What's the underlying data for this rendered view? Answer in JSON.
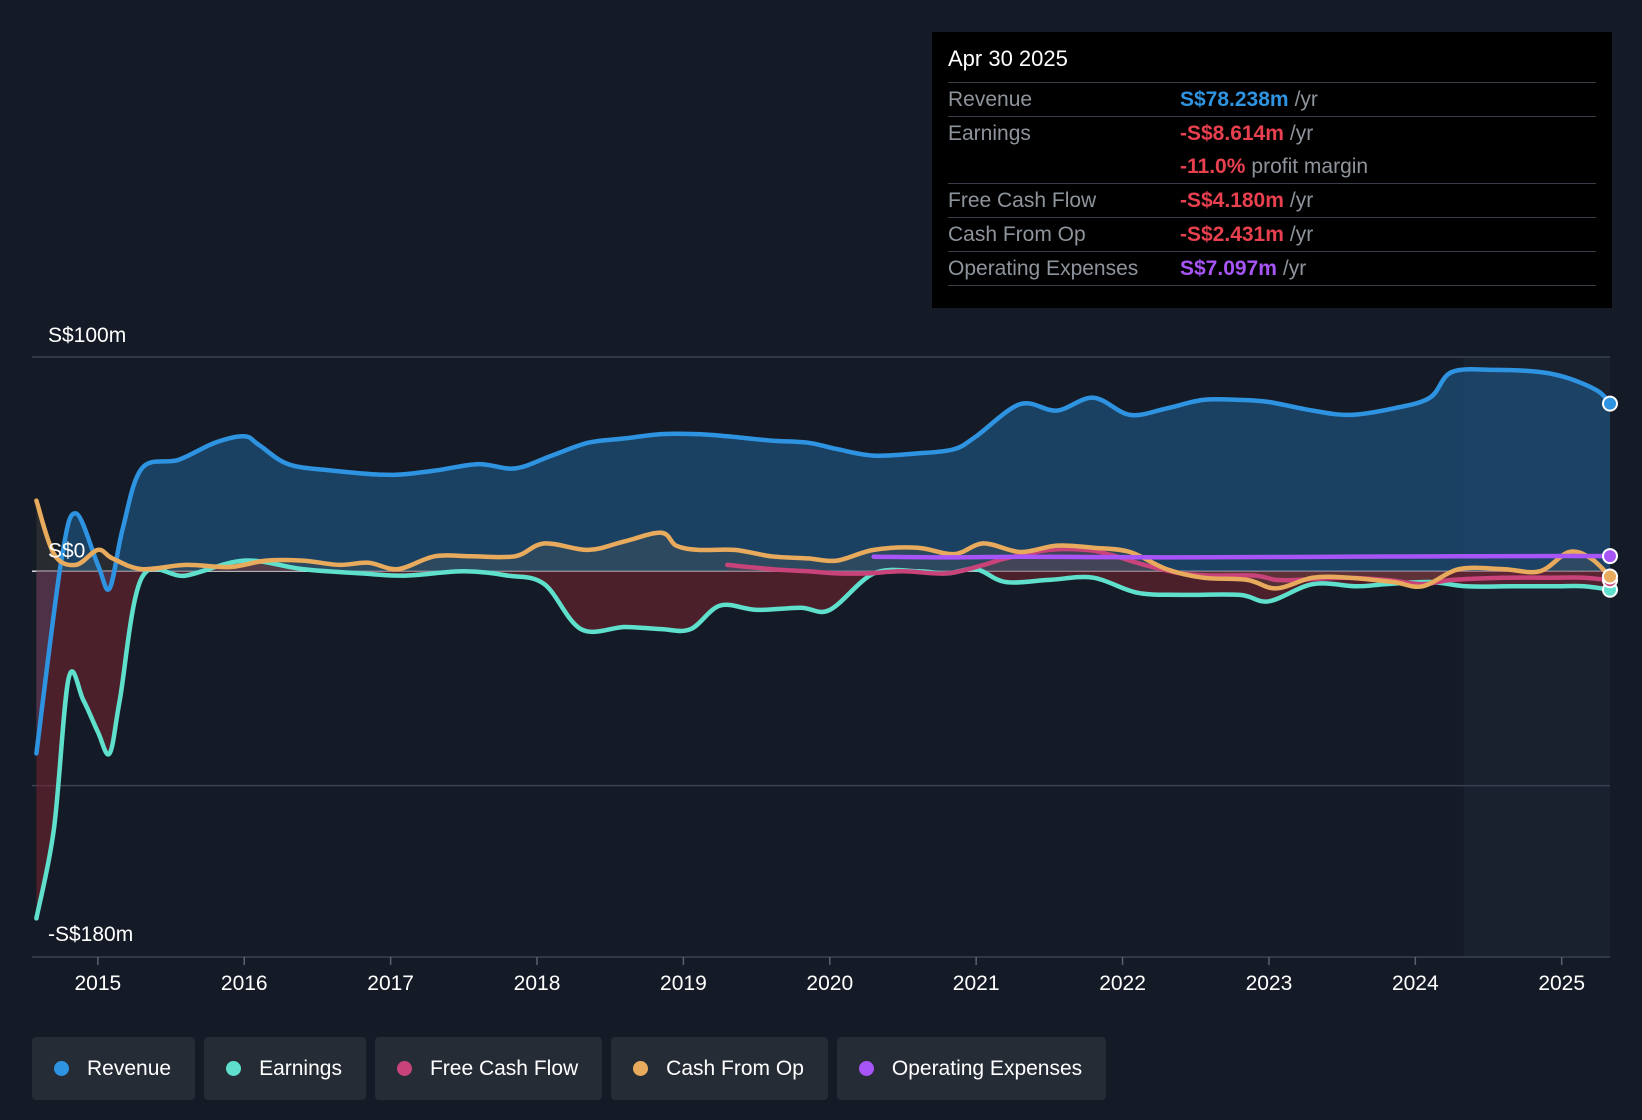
{
  "tooltip": {
    "date": "Apr 30 2025",
    "rows": [
      {
        "label": "Revenue",
        "value": "S$78.238m",
        "unit": "/yr",
        "color": "#2e93e0"
      },
      {
        "label": "Earnings",
        "value": "-S$8.614m",
        "unit": "/yr",
        "color": "#e8404f"
      },
      {
        "label": "",
        "value": "-11.0%",
        "unit": "profit margin",
        "color": "#e8404f"
      },
      {
        "label": "Free Cash Flow",
        "value": "-S$4.180m",
        "unit": "/yr",
        "color": "#e8404f"
      },
      {
        "label": "Cash From Op",
        "value": "-S$2.431m",
        "unit": "/yr",
        "color": "#e8404f"
      },
      {
        "label": "Operating Expenses",
        "value": "S$7.097m",
        "unit": "/yr",
        "color": "#a855f7"
      }
    ]
  },
  "legend": [
    {
      "label": "Revenue",
      "color": "#2e93e0"
    },
    {
      "label": "Earnings",
      "color": "#5fe0cc"
    },
    {
      "label": "Free Cash Flow",
      "color": "#c8437a"
    },
    {
      "label": "Cash From Op",
      "color": "#e8aa5c"
    },
    {
      "label": "Operating Expenses",
      "color": "#a855f7"
    }
  ],
  "chart_data": {
    "type": "line",
    "title": "",
    "xlabel": "",
    "ylabel": "",
    "y_axis_labels": [
      "S$100m",
      "S$0",
      "-S$180m"
    ],
    "ylim": [
      -180,
      100
    ],
    "xlim": [
      2014.55,
      2025.33
    ],
    "x_ticks": [
      "2015",
      "2016",
      "2017",
      "2018",
      "2019",
      "2020",
      "2021",
      "2022",
      "2023",
      "2024",
      "2025"
    ],
    "series": [
      {
        "name": "Revenue",
        "color": "#2e93e0",
        "x": [
          2014.58,
          2014.75,
          2014.85,
          2015.0,
          2015.08,
          2015.17,
          2015.3,
          2015.55,
          2015.8,
          2016.0,
          2016.1,
          2016.3,
          2016.6,
          2017.0,
          2017.3,
          2017.6,
          2017.85,
          2018.1,
          2018.35,
          2018.6,
          2018.85,
          2019.1,
          2019.3,
          2019.6,
          2019.85,
          2020.05,
          2020.3,
          2020.6,
          2020.85,
          2021.0,
          2021.3,
          2021.55,
          2021.8,
          2022.05,
          2022.3,
          2022.55,
          2022.8,
          2023.0,
          2023.3,
          2023.55,
          2023.85,
          2024.1,
          2024.25,
          2024.55,
          2024.85,
          2025.05,
          2025.25,
          2025.33
        ],
        "y": [
          -85,
          5,
          27,
          3,
          -8,
          20,
          48,
          52,
          60,
          63,
          59,
          50,
          47,
          45,
          47,
          50,
          48,
          54,
          60,
          62,
          64,
          64,
          63,
          61,
          60,
          57,
          54,
          55,
          57,
          63,
          78,
          75,
          81,
          73,
          76,
          80,
          80,
          79,
          75,
          73,
          76,
          81,
          93,
          94,
          93,
          90,
          84,
          78.238
        ]
      },
      {
        "name": "Earnings",
        "color": "#5fe0cc",
        "x": [
          2014.58,
          2014.7,
          2014.8,
          2014.9,
          2015.0,
          2015.08,
          2015.15,
          2015.3,
          2015.6,
          2016.0,
          2016.4,
          2016.8,
          2017.1,
          2017.5,
          2017.8,
          2018.05,
          2018.3,
          2018.6,
          2018.85,
          2019.05,
          2019.25,
          2019.5,
          2019.8,
          2020.0,
          2020.3,
          2020.6,
          2020.8,
          2021.0,
          2021.2,
          2021.5,
          2021.8,
          2022.1,
          2022.4,
          2022.8,
          2023.0,
          2023.3,
          2023.6,
          2023.8,
          2024.1,
          2024.35,
          2024.65,
          2024.95,
          2025.15,
          2025.33
        ],
        "y": [
          -162,
          -120,
          -50,
          -60,
          -75,
          -85,
          -60,
          -3,
          -2,
          5,
          1,
          -1,
          -2,
          0,
          -2,
          -6,
          -27,
          -26,
          -27,
          -27,
          -16,
          -18,
          -17,
          -18,
          -1,
          0,
          -1,
          1,
          -5,
          -4,
          -3,
          -10,
          -11,
          -11,
          -14,
          -6,
          -7,
          -6,
          -5,
          -7,
          -7,
          -7,
          -7,
          -8.614
        ]
      },
      {
        "name": "Free Cash Flow",
        "color": "#c8437a",
        "x": [
          2019.3,
          2019.6,
          2019.85,
          2020.05,
          2020.25,
          2020.5,
          2020.8,
          2021.05,
          2021.2,
          2021.5,
          2021.75,
          2021.9,
          2022.15,
          2022.4,
          2022.6,
          2022.9,
          2023.05,
          2023.2,
          2023.5,
          2023.8,
          2024.05,
          2024.25,
          2024.6,
          2024.9,
          2025.15,
          2025.33
        ],
        "y": [
          3,
          1,
          0,
          -1,
          -1,
          0,
          -1,
          3,
          6,
          10,
          10,
          8,
          3,
          -1,
          -2,
          -2,
          -4,
          -4,
          -3,
          -4,
          -6,
          -4,
          -3,
          -3,
          -3,
          -4.18
        ]
      },
      {
        "name": "Cash From Op",
        "color": "#e8aa5c",
        "x": [
          2014.58,
          2014.7,
          2014.85,
          2015.0,
          2015.1,
          2015.3,
          2015.6,
          2015.9,
          2016.15,
          2016.4,
          2016.65,
          2016.85,
          2017.05,
          2017.3,
          2017.55,
          2017.85,
          2018.05,
          2018.35,
          2018.6,
          2018.85,
          2018.95,
          2019.1,
          2019.35,
          2019.6,
          2019.85,
          2020.05,
          2020.3,
          2020.6,
          2020.85,
          2021.05,
          2021.3,
          2021.55,
          2021.8,
          2022.05,
          2022.3,
          2022.55,
          2022.85,
          2023.05,
          2023.3,
          2023.55,
          2023.85,
          2024.05,
          2024.3,
          2024.6,
          2024.85,
          2025.05,
          2025.2,
          2025.33
        ],
        "y": [
          33,
          8,
          3,
          10,
          6,
          1,
          3,
          2,
          5,
          5,
          3,
          4,
          1,
          7,
          7,
          7,
          13,
          10,
          14,
          18,
          12,
          10,
          10,
          7,
          6,
          5,
          10,
          11,
          8,
          13,
          9,
          12,
          11,
          9,
          1,
          -3,
          -4,
          -8,
          -3,
          -3,
          -5,
          -7,
          1,
          1,
          0,
          9,
          6,
          -2.431
        ]
      },
      {
        "name": "Operating Expenses",
        "color": "#a855f7",
        "x": [
          2020.3,
          2020.8,
          2021.3,
          2021.8,
          2022.3,
          2022.8,
          2023.3,
          2023.8,
          2024.3,
          2024.8,
          2025.33
        ],
        "y": [
          6.8,
          6.5,
          6.8,
          6.6,
          6.5,
          6.6,
          6.7,
          6.9,
          7.0,
          7.1,
          7.097
        ]
      }
    ]
  }
}
